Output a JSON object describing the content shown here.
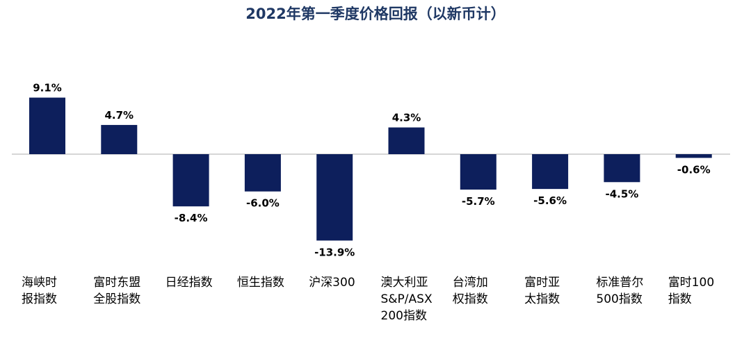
{
  "chart_data": {
    "type": "bar",
    "title": "2022年第一季度价格回报（以新币计）",
    "categories": [
      [
        "海峡时",
        "报指数"
      ],
      [
        "富时东盟",
        "全股指数"
      ],
      [
        "日经指数"
      ],
      [
        "恒生指数"
      ],
      [
        "沪深300"
      ],
      [
        "澳大利亚",
        "S&P/ASX",
        "200指数"
      ],
      [
        "台湾加",
        "权指数"
      ],
      [
        "富时亚",
        "太指数"
      ],
      [
        "标准普尔",
        "500指数"
      ],
      [
        "富时100",
        "指数"
      ]
    ],
    "values": [
      9.1,
      4.7,
      -8.4,
      -6.0,
      -13.9,
      4.3,
      -5.7,
      -5.6,
      -4.5,
      -0.6
    ],
    "value_labels": [
      "9.1%",
      "4.7%",
      "-8.4%",
      "-6.0%",
      "-13.9%",
      "4.3%",
      "-5.7%",
      "-5.6%",
      "-4.5%",
      "-0.6%"
    ],
    "xlabel": "",
    "ylabel": "",
    "ylim": [
      -13.9,
      9.1
    ],
    "grid": false,
    "legend": "none",
    "bar_color": "#0d1f5c",
    "title_color": "#1f3864",
    "baseline_color": "#c8c8c8"
  }
}
